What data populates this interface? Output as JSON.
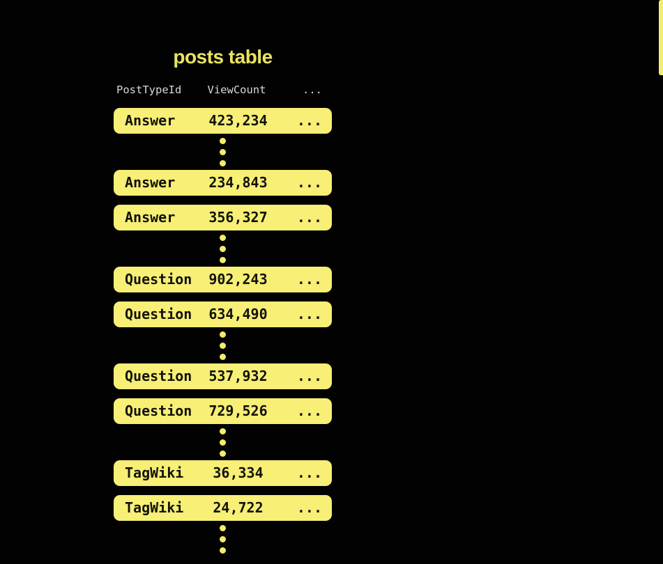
{
  "title": "posts table",
  "table": {
    "columns": [
      "PostTypeId",
      "ViewCount",
      "..."
    ],
    "rows": [
      {
        "PostTypeId": "Answer",
        "ViewCount": "423,234",
        "more": "...",
        "ellipsis_after": true
      },
      {
        "PostTypeId": "Answer",
        "ViewCount": "234,843",
        "more": "...",
        "ellipsis_after": false
      },
      {
        "PostTypeId": "Answer",
        "ViewCount": "356,327",
        "more": "...",
        "ellipsis_after": true
      },
      {
        "PostTypeId": "Question",
        "ViewCount": "902,243",
        "more": "...",
        "ellipsis_after": false
      },
      {
        "PostTypeId": "Question",
        "ViewCount": "634,490",
        "more": "...",
        "ellipsis_after": true
      },
      {
        "PostTypeId": "Question",
        "ViewCount": "537,932",
        "more": "...",
        "ellipsis_after": false
      },
      {
        "PostTypeId": "Question",
        "ViewCount": "729,526",
        "more": "...",
        "ellipsis_after": true
      },
      {
        "PostTypeId": "TagWiki",
        "ViewCount": "36,334",
        "more": "...",
        "ellipsis_after": false
      },
      {
        "PostTypeId": "TagWiki",
        "ViewCount": "24,722",
        "more": "...",
        "ellipsis_after": true
      }
    ]
  },
  "colors": {
    "background": "#020202",
    "row_fill": "#f7ef76",
    "row_text": "#12120a",
    "title_text": "#ebe45e",
    "header_text": "#d8d8d8",
    "dot_fill": "#f5ec6e",
    "scrollbar_fill": "#f5ec6e"
  },
  "scrollbar": {
    "visible": true
  }
}
